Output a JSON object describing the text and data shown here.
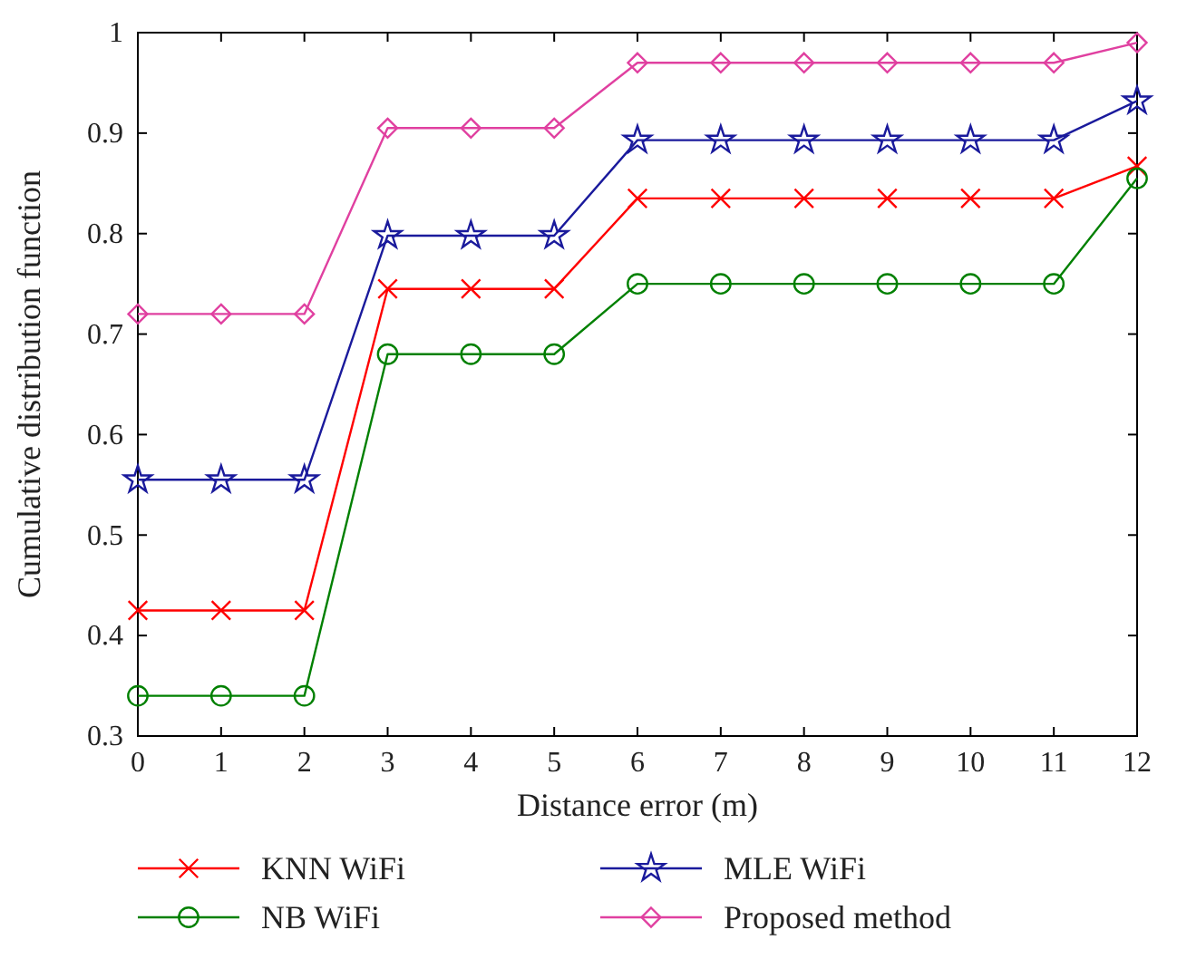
{
  "chart_data": {
    "type": "line",
    "xlabel": "Distance error (m)",
    "ylabel": "Cumulative distribution function",
    "x": [
      0,
      1,
      2,
      3,
      4,
      5,
      6,
      7,
      8,
      9,
      10,
      11,
      12
    ],
    "xlim": [
      0,
      12
    ],
    "xticks": [
      0,
      1,
      2,
      3,
      4,
      5,
      6,
      7,
      8,
      9,
      10,
      11,
      12
    ],
    "ylim": [
      0.3,
      1
    ],
    "yticks": [
      0.3,
      0.4,
      0.5,
      0.6,
      0.7,
      0.8,
      0.9,
      1
    ],
    "grid": false,
    "legend": "bottom",
    "line_style": "solid",
    "series": [
      {
        "name": "KNN WiFi",
        "color": "#ff0000",
        "marker": "cross",
        "values": [
          0.425,
          0.425,
          0.425,
          0.745,
          0.745,
          0.745,
          0.835,
          0.835,
          0.835,
          0.835,
          0.835,
          0.835,
          0.867
        ]
      },
      {
        "name": "NB WiFi",
        "color": "#008000",
        "marker": "circle",
        "values": [
          0.34,
          0.34,
          0.34,
          0.68,
          0.68,
          0.68,
          0.75,
          0.75,
          0.75,
          0.75,
          0.75,
          0.75,
          0.855
        ]
      },
      {
        "name": "MLE WiFi",
        "color": "#1a1a9c",
        "marker": "star",
        "values": [
          0.555,
          0.555,
          0.555,
          0.798,
          0.798,
          0.798,
          0.893,
          0.893,
          0.893,
          0.893,
          0.893,
          0.893,
          0.932
        ]
      },
      {
        "name": "Proposed method",
        "color": "#e040a0",
        "marker": "diamond",
        "values": [
          0.72,
          0.72,
          0.72,
          0.905,
          0.905,
          0.905,
          0.97,
          0.97,
          0.97,
          0.97,
          0.97,
          0.97,
          0.99
        ]
      }
    ]
  }
}
